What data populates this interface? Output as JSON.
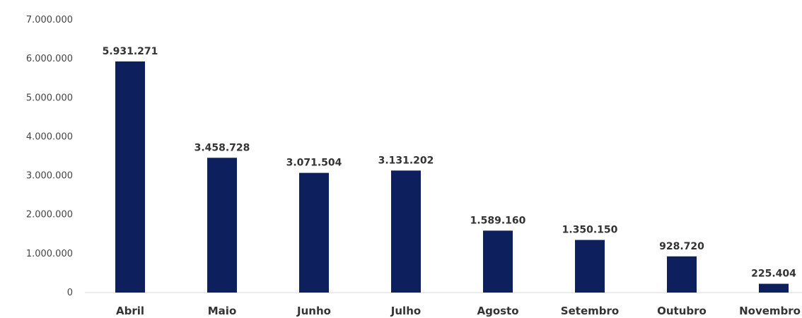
{
  "chart_data": {
    "type": "bar",
    "title": "",
    "xlabel": "",
    "ylabel": "",
    "categories": [
      "Abril",
      "Maio",
      "Junho",
      "Julho",
      "Agosto",
      "Setembro",
      "Outubro",
      "Novembro"
    ],
    "values": [
      5931271,
      3458728,
      3071504,
      3131202,
      1589160,
      1350150,
      928720,
      225404
    ],
    "value_labels": [
      "5.931.271",
      "3.458.728",
      "3.071.504",
      "3.131.202",
      "1.589.160",
      "1.350.150",
      "928.720",
      "225.404"
    ],
    "ylim": [
      0,
      7000000
    ],
    "yticks": [
      0,
      1000000,
      2000000,
      3000000,
      4000000,
      5000000,
      6000000,
      7000000
    ],
    "ytick_labels": [
      "0",
      "1.000.000",
      "2.000.000",
      "3.000.000",
      "4.000.000",
      "5.000.000",
      "6.000.000",
      "7.000.000"
    ],
    "grid": false,
    "legend": "none",
    "colors": {
      "bar": "#0d1f5c",
      "baseline": "#d9d9d9"
    }
  }
}
